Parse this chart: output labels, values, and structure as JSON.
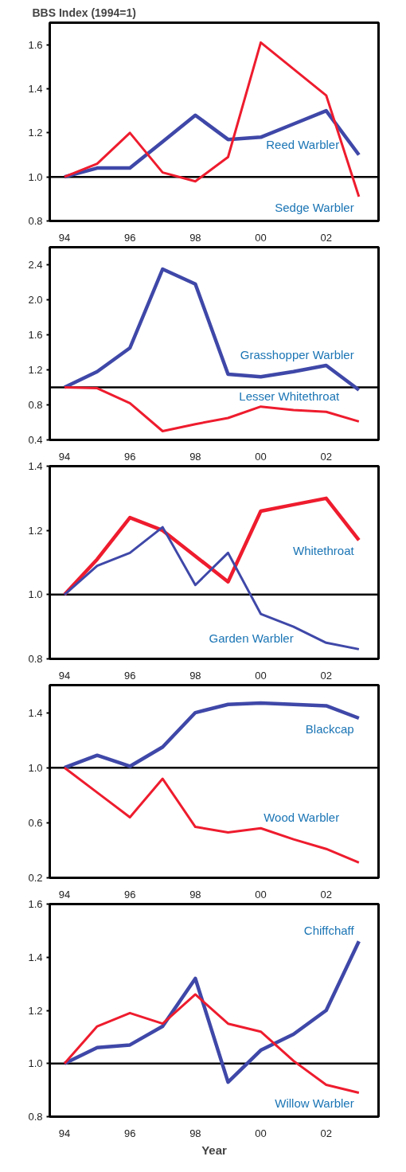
{
  "chart_data": [
    {
      "type": "line",
      "title": "BBS Index (1994=1)",
      "x": [
        1994,
        1995,
        1996,
        1997,
        1998,
        1999,
        2000,
        2001,
        2002,
        2003
      ],
      "xlim": [
        1993.55,
        2003.6
      ],
      "xticks": [
        {
          "value": 1994,
          "label": "94"
        },
        {
          "value": 1996,
          "label": "96"
        },
        {
          "value": 1998,
          "label": "98"
        },
        {
          "value": 2000,
          "label": "00"
        },
        {
          "value": 2002,
          "label": "02"
        }
      ],
      "ylim": [
        0.8,
        1.7
      ],
      "yticks": [
        {
          "value": 0.8,
          "label": "0.8"
        },
        {
          "value": 1.0,
          "label": "1.0"
        },
        {
          "value": 1.2,
          "label": "1.2"
        },
        {
          "value": 1.4,
          "label": "1.4"
        },
        {
          "value": 1.6,
          "label": "1.6"
        }
      ],
      "ref_lines": [
        {
          "axis": "y",
          "value": 1.0,
          "color": "#000000"
        }
      ],
      "series": [
        {
          "name": "Reed Warbler",
          "color": "#3f48a8",
          "values": [
            1.0,
            1.04,
            1.04,
            1.16,
            1.28,
            1.17,
            1.18,
            1.24,
            1.3,
            1.1
          ]
        },
        {
          "name": "Sedge Warbler",
          "color": "#ee1c2e",
          "values": [
            1.0,
            1.06,
            1.2,
            1.02,
            0.98,
            1.09,
            1.61,
            1.49,
            1.37,
            0.91
          ]
        }
      ]
    },
    {
      "type": "line",
      "x": [
        1994,
        1995,
        1996,
        1997,
        1998,
        1999,
        2000,
        2001,
        2002,
        2003
      ],
      "xlim": [
        1993.55,
        2003.6
      ],
      "xticks": [
        {
          "value": 1994,
          "label": "94"
        },
        {
          "value": 1996,
          "label": "96"
        },
        {
          "value": 1998,
          "label": "98"
        },
        {
          "value": 2000,
          "label": "00"
        },
        {
          "value": 2002,
          "label": "02"
        }
      ],
      "ylim": [
        0.4,
        2.6
      ],
      "yticks": [
        {
          "value": 0.4,
          "label": "0.4"
        },
        {
          "value": 0.8,
          "label": "0.8"
        },
        {
          "value": 1.2,
          "label": "1.2"
        },
        {
          "value": 1.6,
          "label": "1.6"
        },
        {
          "value": 2.0,
          "label": "2.0"
        },
        {
          "value": 2.4,
          "label": "2.4"
        }
      ],
      "ref_lines": [
        {
          "axis": "y",
          "value": 1.0,
          "color": "#000000"
        }
      ],
      "series": [
        {
          "name": "Grasshopper Warbler",
          "color": "#3f48a8",
          "values": [
            1.0,
            1.18,
            1.45,
            2.35,
            2.18,
            1.15,
            1.12,
            1.18,
            1.25,
            0.97
          ]
        },
        {
          "name": "Lesser Whitethroat",
          "color": "#ee1c2e",
          "values": [
            1.0,
            0.99,
            0.82,
            0.5,
            0.58,
            0.65,
            0.78,
            0.74,
            0.72,
            0.61
          ]
        }
      ]
    },
    {
      "type": "line",
      "x": [
        1994,
        1995,
        1996,
        1997,
        1998,
        1999,
        2000,
        2001,
        2002,
        2003
      ],
      "xlim": [
        1993.55,
        2003.6
      ],
      "xticks": [
        {
          "value": 1994,
          "label": "94"
        },
        {
          "value": 1996,
          "label": "96"
        },
        {
          "value": 1998,
          "label": "98"
        },
        {
          "value": 2000,
          "label": "00"
        },
        {
          "value": 2002,
          "label": "02"
        }
      ],
      "ylim": [
        0.8,
        1.4
      ],
      "yticks": [
        {
          "value": 0.8,
          "label": "0.8"
        },
        {
          "value": 1.0,
          "label": "1.0"
        },
        {
          "value": 1.2,
          "label": "1.2"
        },
        {
          "value": 1.4,
          "label": "1.4"
        }
      ],
      "ref_lines": [
        {
          "axis": "y",
          "value": 1.0,
          "color": "#000000"
        }
      ],
      "series": [
        {
          "name": "Whitethroat",
          "color": "#ee1c2e",
          "values": [
            1.0,
            1.11,
            1.24,
            1.2,
            1.12,
            1.04,
            1.26,
            1.28,
            1.3,
            1.17
          ]
        },
        {
          "name": "Garden Warbler",
          "color": "#3f48a8",
          "values": [
            1.0,
            1.09,
            1.13,
            1.21,
            1.03,
            1.13,
            0.94,
            0.9,
            0.85,
            0.83
          ]
        }
      ]
    },
    {
      "type": "line",
      "x": [
        1994,
        1995,
        1996,
        1997,
        1998,
        1999,
        2000,
        2001,
        2002,
        2003
      ],
      "xlim": [
        1993.55,
        2003.6
      ],
      "xticks": [
        {
          "value": 1994,
          "label": "94"
        },
        {
          "value": 1996,
          "label": "96"
        },
        {
          "value": 1998,
          "label": "98"
        },
        {
          "value": 2000,
          "label": "00"
        },
        {
          "value": 2002,
          "label": "02"
        }
      ],
      "ylim": [
        0.2,
        1.6
      ],
      "yticks": [
        {
          "value": 0.2,
          "label": "0.2"
        },
        {
          "value": 0.6,
          "label": "0.6"
        },
        {
          "value": 1.0,
          "label": "1.0"
        },
        {
          "value": 1.4,
          "label": "1.4"
        }
      ],
      "ref_lines": [
        {
          "axis": "y",
          "value": 1.0,
          "color": "#000000"
        }
      ],
      "series": [
        {
          "name": "Blackcap",
          "color": "#3f48a8",
          "values": [
            1.0,
            1.09,
            1.01,
            1.15,
            1.4,
            1.46,
            1.47,
            1.46,
            1.45,
            1.36
          ]
        },
        {
          "name": "Wood Warbler",
          "color": "#ee1c2e",
          "values": [
            1.0,
            0.82,
            0.64,
            0.92,
            0.57,
            0.53,
            0.56,
            0.48,
            0.41,
            0.31
          ]
        }
      ]
    },
    {
      "type": "line",
      "xlabel": "Year",
      "x": [
        1994,
        1995,
        1996,
        1997,
        1998,
        1999,
        2000,
        2001,
        2002,
        2003
      ],
      "xlim": [
        1993.55,
        2003.6
      ],
      "xticks": [
        {
          "value": 1994,
          "label": "94"
        },
        {
          "value": 1996,
          "label": "96"
        },
        {
          "value": 1998,
          "label": "98"
        },
        {
          "value": 2000,
          "label": "00"
        },
        {
          "value": 2002,
          "label": "02"
        }
      ],
      "ylim": [
        0.8,
        1.6
      ],
      "yticks": [
        {
          "value": 0.8,
          "label": "0.8"
        },
        {
          "value": 1.0,
          "label": "1.0"
        },
        {
          "value": 1.2,
          "label": "1.2"
        },
        {
          "value": 1.4,
          "label": "1.4"
        },
        {
          "value": 1.6,
          "label": "1.6"
        }
      ],
      "ref_lines": [
        {
          "axis": "y",
          "value": 1.0,
          "color": "#000000"
        }
      ],
      "series": [
        {
          "name": "Chiffchaff",
          "color": "#3f48a8",
          "values": [
            1.0,
            1.06,
            1.07,
            1.14,
            1.32,
            0.93,
            1.05,
            1.11,
            1.2,
            1.46
          ]
        },
        {
          "name": "Willow Warbler",
          "color": "#ee1c2e",
          "values": [
            1.0,
            1.14,
            1.19,
            1.15,
            1.26,
            1.15,
            1.12,
            1.01,
            0.92,
            0.89
          ]
        }
      ]
    }
  ]
}
